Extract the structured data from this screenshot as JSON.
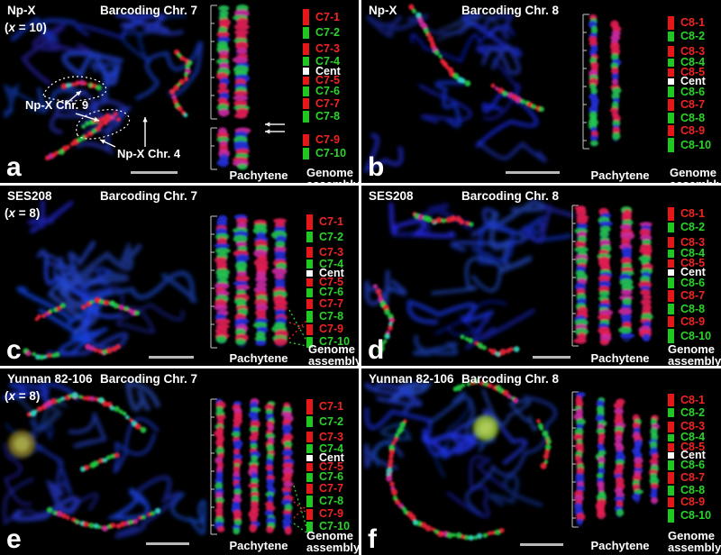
{
  "figure": {
    "background": "#000000",
    "divider_color": "#ffffff"
  },
  "colors": {
    "segment_red": "#e81717",
    "segment_green": "#1ec81e",
    "segment_cent": "#ffffff",
    "label_red": "#ef2424",
    "label_green": "#2bd32b",
    "label_cent": "#ffffff",
    "microscopy_dapi_blue": "#2233cc",
    "annotation_white": "#ffffff",
    "scalebar_gray": "#b9b9b9"
  },
  "shared_labels": {
    "pachytene": "Pachytene",
    "genome_line1": "Genome",
    "genome_line2": "assembly"
  },
  "panels": [
    {
      "letter": "a",
      "sample": "Np-X",
      "ploidy_open": "(",
      "ploidy_x": "x",
      "ploidy_rest": " = 10)",
      "title": "Barcoding Chr. 7",
      "annotations": [
        {
          "text": "Np-X Chr. 9"
        },
        {
          "text": "Np-X Chr. 4"
        }
      ],
      "pachytene_strands": 2,
      "icons": [
        "dotted-outline",
        "pointer-arrows",
        "double-arrow",
        "scale-bar"
      ],
      "legend": [
        {
          "label": "C7-1",
          "color": "red",
          "h": 18
        },
        {
          "label": "C7-2",
          "color": "green",
          "h": 13
        },
        {
          "label": "C7-3",
          "color": "red",
          "h": 13,
          "gap_before": 5
        },
        {
          "label": "C7-4",
          "color": "green",
          "h": 10
        },
        {
          "label": "Cent",
          "color": "cent",
          "h": 8
        },
        {
          "label": "C7-5",
          "color": "red",
          "h": 9
        },
        {
          "label": "C7-6",
          "color": "green",
          "h": 11
        },
        {
          "label": "C7-7",
          "color": "red",
          "h": 12
        },
        {
          "label": "C7-8",
          "color": "green",
          "h": 13
        },
        {
          "label": "C7-9",
          "color": "red",
          "h": 13,
          "gap_before": 13
        },
        {
          "label": "C7-10",
          "color": "green",
          "h": 13
        }
      ]
    },
    {
      "letter": "b",
      "sample": "Np-X",
      "title": "Barcoding Chr. 8",
      "annotations": [],
      "pachytene_strands": 2,
      "icons": [
        "scale-bar"
      ],
      "legend": [
        {
          "label": "C8-1",
          "color": "red",
          "h": 15
        },
        {
          "label": "C8-2",
          "color": "green",
          "h": 11
        },
        {
          "label": "C8-3",
          "color": "red",
          "h": 12,
          "gap_before": 5
        },
        {
          "label": "C8-4",
          "color": "green",
          "h": 9
        },
        {
          "label": "C8-5",
          "color": "red",
          "h": 9
        },
        {
          "label": "Cent",
          "color": "cent",
          "h": 7
        },
        {
          "label": "C8-6",
          "color": "green",
          "h": 12
        },
        {
          "label": "C8-7",
          "color": "red",
          "h": 13
        },
        {
          "label": "C8-8",
          "color": "green",
          "h": 12
        },
        {
          "label": "C8-9",
          "color": "red",
          "h": 12
        },
        {
          "label": "C8-10",
          "color": "green",
          "h": 16
        }
      ]
    },
    {
      "letter": "c",
      "sample": "SES208",
      "ploidy_open": "(",
      "ploidy_x": "x",
      "ploidy_rest": " = 8)",
      "title": "Barcoding Chr. 7",
      "annotations": [],
      "pachytene_strands": 4,
      "icons": [
        "inversion-dashed-lines",
        "scale-bar"
      ],
      "legend": [
        {
          "label": "C7-1",
          "color": "red",
          "h": 18
        },
        {
          "label": "C7-2",
          "color": "green",
          "h": 13
        },
        {
          "label": "C7-3",
          "color": "red",
          "h": 13,
          "gap_before": 5
        },
        {
          "label": "C7-4",
          "color": "green",
          "h": 10
        },
        {
          "label": "Cent",
          "color": "cent",
          "h": 8
        },
        {
          "label": "C7-5",
          "color": "red",
          "h": 9
        },
        {
          "label": "C7-6",
          "color": "green",
          "h": 11
        },
        {
          "label": "C7-7",
          "color": "red",
          "h": 12
        },
        {
          "label": "C7-8",
          "color": "green",
          "h": 13
        },
        {
          "label": "C7-9",
          "color": "red",
          "h": 13
        },
        {
          "label": "C7-10",
          "color": "green",
          "h": 13
        }
      ]
    },
    {
      "letter": "d",
      "sample": "SES208",
      "title": "Barcoding Chr. 8",
      "annotations": [],
      "pachytene_strands": 4,
      "icons": [
        "scale-bar"
      ],
      "legend": [
        {
          "label": "C8-1",
          "color": "red",
          "h": 15
        },
        {
          "label": "C8-2",
          "color": "green",
          "h": 11
        },
        {
          "label": "C8-3",
          "color": "red",
          "h": 12,
          "gap_before": 5
        },
        {
          "label": "C8-4",
          "color": "green",
          "h": 9
        },
        {
          "label": "C8-5",
          "color": "red",
          "h": 9
        },
        {
          "label": "Cent",
          "color": "cent",
          "h": 7
        },
        {
          "label": "C8-6",
          "color": "green",
          "h": 12
        },
        {
          "label": "C8-7",
          "color": "red",
          "h": 13
        },
        {
          "label": "C8-8",
          "color": "green",
          "h": 12
        },
        {
          "label": "C8-9",
          "color": "red",
          "h": 12
        },
        {
          "label": "C8-10",
          "color": "green",
          "h": 16
        }
      ]
    },
    {
      "letter": "e",
      "sample": "Yunnan 82-106",
      "ploidy_open": "(",
      "ploidy_x": "x",
      "ploidy_rest": " = 8)",
      "title": "Barcoding Chr. 7",
      "annotations": [],
      "pachytene_strands": 5,
      "icons": [
        "inversion-dashed-lines",
        "nucleolus",
        "scale-bar"
      ],
      "legend": [
        {
          "label": "C7-1",
          "color": "red",
          "h": 18
        },
        {
          "label": "C7-2",
          "color": "green",
          "h": 13
        },
        {
          "label": "C7-3",
          "color": "red",
          "h": 13,
          "gap_before": 5
        },
        {
          "label": "C7-4",
          "color": "green",
          "h": 10
        },
        {
          "label": "Cent",
          "color": "cent",
          "h": 8
        },
        {
          "label": "C7-5",
          "color": "red",
          "h": 9
        },
        {
          "label": "C7-6",
          "color": "green",
          "h": 11
        },
        {
          "label": "C7-7",
          "color": "red",
          "h": 12
        },
        {
          "label": "C7-8",
          "color": "green",
          "h": 13
        },
        {
          "label": "C7-9",
          "color": "red",
          "h": 13
        },
        {
          "label": "C7-10",
          "color": "green",
          "h": 13
        }
      ]
    },
    {
      "letter": "f",
      "sample": "Yunnan 82-106",
      "title": "Barcoding Chr. 8",
      "annotations": [],
      "pachytene_strands": 5,
      "icons": [
        "nucleolus",
        "scale-bar"
      ],
      "legend": [
        {
          "label": "C8-1",
          "color": "red",
          "h": 15
        },
        {
          "label": "C8-2",
          "color": "green",
          "h": 11
        },
        {
          "label": "C8-3",
          "color": "red",
          "h": 12,
          "gap_before": 5
        },
        {
          "label": "C8-4",
          "color": "green",
          "h": 9
        },
        {
          "label": "C8-5",
          "color": "red",
          "h": 9
        },
        {
          "label": "Cent",
          "color": "cent",
          "h": 7
        },
        {
          "label": "C8-6",
          "color": "green",
          "h": 12
        },
        {
          "label": "C8-7",
          "color": "red",
          "h": 13
        },
        {
          "label": "C8-8",
          "color": "green",
          "h": 12
        },
        {
          "label": "C8-9",
          "color": "red",
          "h": 12
        },
        {
          "label": "C8-10",
          "color": "green",
          "h": 16
        }
      ]
    }
  ]
}
